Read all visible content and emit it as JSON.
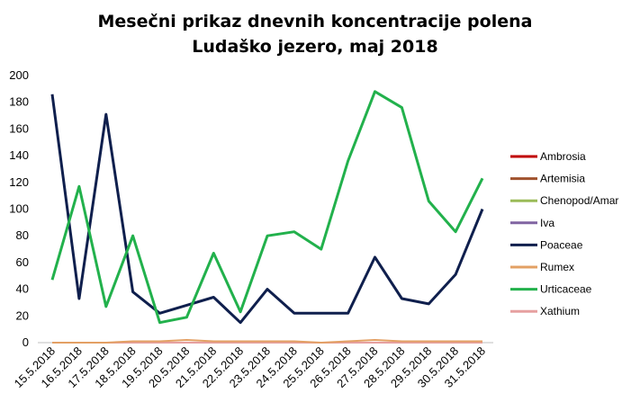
{
  "chart_data": {
    "type": "line",
    "title": "Mesečni prikaz dnevnih koncentracije polena",
    "subtitle": "Ludaško jezero, maj 2018",
    "xlabel": "",
    "ylabel": "",
    "ylim": [
      0,
      200
    ],
    "yticks": [
      0,
      20,
      40,
      60,
      80,
      100,
      120,
      140,
      160,
      180,
      200
    ],
    "grid": false,
    "legend_position": "right",
    "categories": [
      "15.5.2018",
      "16.5.2018",
      "17.5.2018",
      "18.5.2018",
      "19.5.2018",
      "20.5.2018",
      "21.5.2018",
      "22.5.2018",
      "23.5.2018",
      "24.5.2018",
      "25.5.2018",
      "26.5.2018",
      "27.5.2018",
      "28.5.2018",
      "29.5.2018",
      "30.5.2018",
      "31.5.2018"
    ],
    "series": [
      {
        "name": "Ambrosia",
        "color": "#c00000",
        "values": [
          0,
          0,
          0,
          0,
          0,
          0,
          0,
          0,
          0,
          0,
          0,
          0,
          0,
          0,
          0,
          0,
          0
        ]
      },
      {
        "name": "Artemisia",
        "color": "#a0522d",
        "values": [
          0,
          0,
          0,
          0,
          0,
          0,
          0,
          0,
          0,
          0,
          0,
          0,
          0,
          0,
          0,
          0,
          0
        ]
      },
      {
        "name": "Chenopod/Amar",
        "color": "#9bbb59",
        "values": [
          0,
          0,
          0,
          0,
          0,
          0,
          0,
          0,
          0,
          0,
          0,
          0,
          0,
          0,
          0,
          0,
          0
        ]
      },
      {
        "name": "Iva",
        "color": "#8064a2",
        "values": [
          0,
          0,
          0,
          0,
          0,
          0,
          0,
          0,
          0,
          0,
          0,
          0,
          0,
          0,
          0,
          0,
          0
        ]
      },
      {
        "name": "Poaceae",
        "color": "#0f1f4d",
        "values": [
          186,
          33,
          171,
          38,
          22,
          28,
          34,
          15,
          40,
          22,
          22,
          22,
          64,
          33,
          29,
          51,
          100
        ]
      },
      {
        "name": "Rumex",
        "color": "#e3a064",
        "values": [
          0,
          0,
          0,
          1,
          1,
          2,
          1,
          1,
          1,
          1,
          0,
          1,
          2,
          1,
          1,
          1,
          1
        ]
      },
      {
        "name": "Urticaceae",
        "color": "#22b14c",
        "values": [
          47,
          117,
          27,
          80,
          15,
          19,
          67,
          23,
          80,
          83,
          70,
          136,
          188,
          176,
          106,
          83,
          123
        ]
      },
      {
        "name": "Xathium",
        "color": "#e6a0a0",
        "values": [
          0,
          0,
          0,
          0,
          0,
          0,
          0,
          0,
          0,
          0,
          0,
          0,
          0,
          0,
          0,
          0,
          0
        ]
      }
    ]
  }
}
